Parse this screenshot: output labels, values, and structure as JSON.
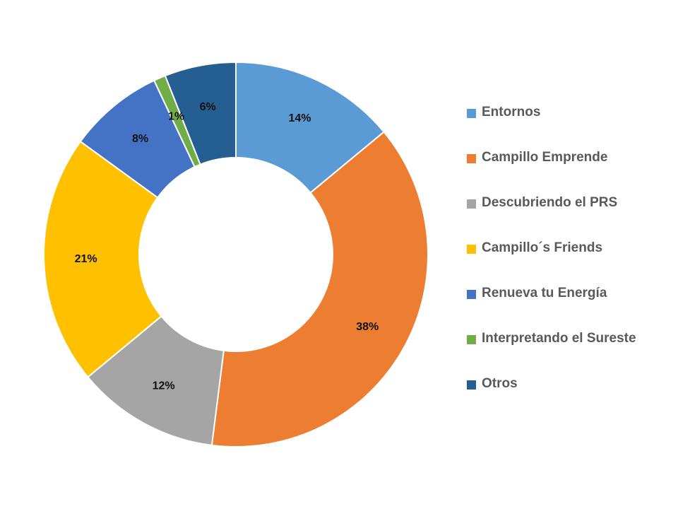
{
  "chart_data": {
    "type": "pie",
    "subtype": "donut",
    "title": "",
    "legend_position": "right",
    "slices": [
      {
        "name": "Entornos",
        "value": 14,
        "label": "14%",
        "color": "#5b9bd5"
      },
      {
        "name": "Campillo Emprende",
        "value": 38,
        "label": "38%",
        "color": "#ed7d31"
      },
      {
        "name": "Descubriendo el PRS",
        "value": 12,
        "label": "12%",
        "color": "#a5a5a5"
      },
      {
        "name": "Campillo´s Friends",
        "value": 21,
        "label": "21%",
        "color": "#ffc000"
      },
      {
        "name": "Renueva tu Energía",
        "value": 8,
        "label": "8%",
        "color": "#4472c4"
      },
      {
        "name": "Interpretando el Sureste",
        "value": 1,
        "label": "1%",
        "color": "#70ad47"
      },
      {
        "name": "Otros",
        "value": 6,
        "label": "6%",
        "color": "#255e91"
      }
    ]
  }
}
